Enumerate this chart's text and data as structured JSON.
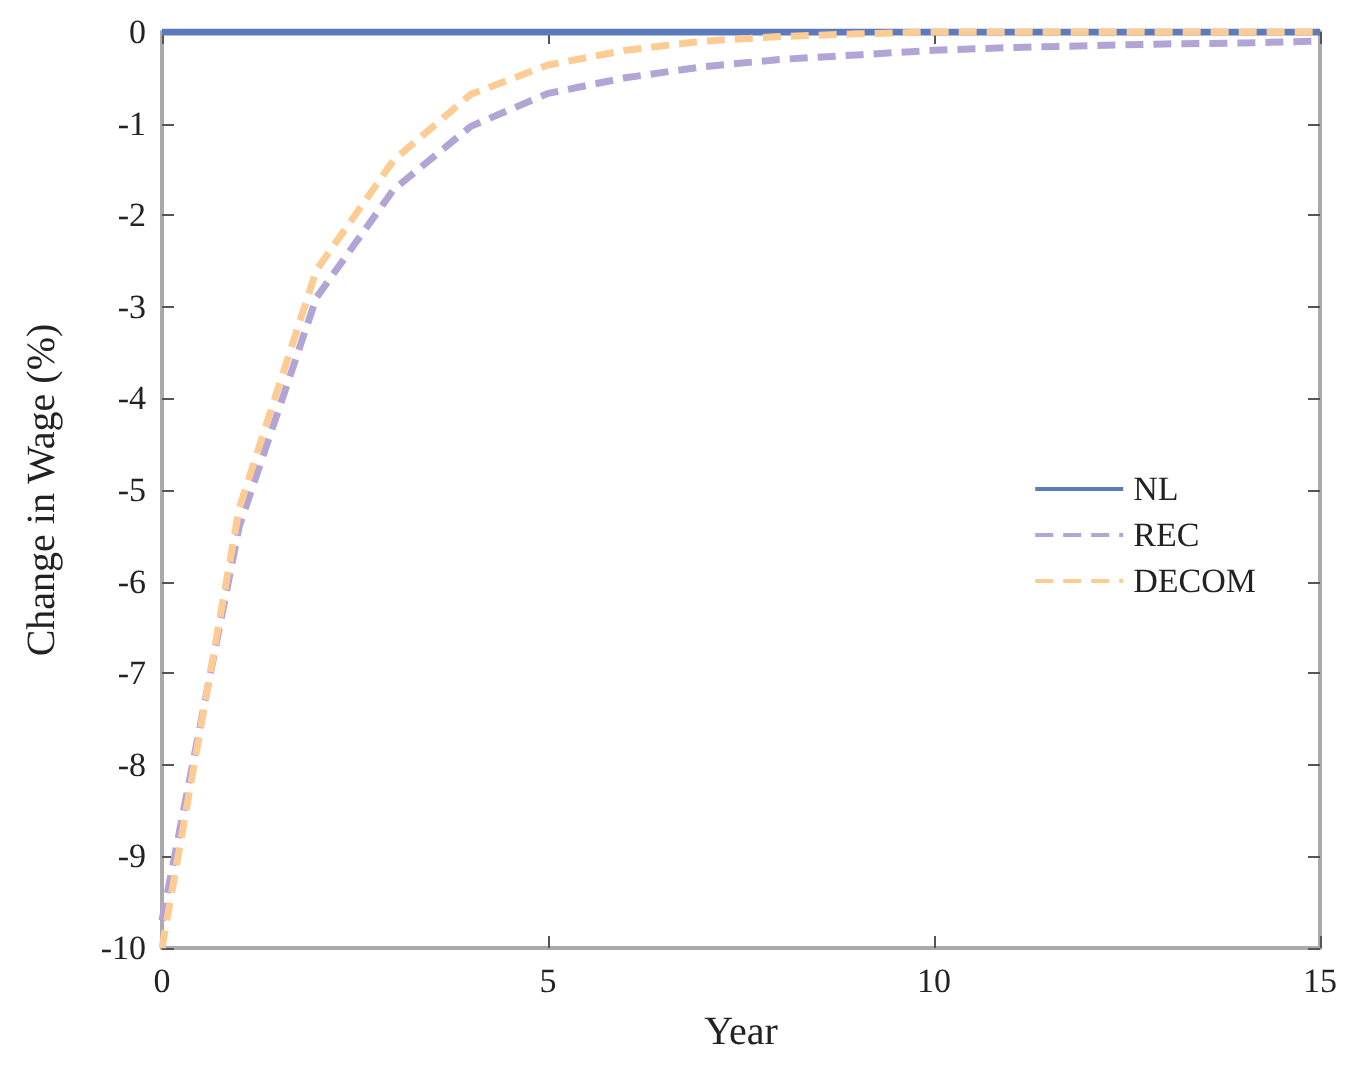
{
  "chart_data": {
    "type": "line",
    "xlabel": "Year",
    "ylabel": "Change in Wage (%)",
    "x": [
      0,
      1,
      2,
      3,
      4,
      5,
      6,
      7,
      8,
      9,
      10,
      11,
      12,
      13,
      14,
      15
    ],
    "series": [
      {
        "name": "NL",
        "color": "#5b7bbd",
        "line_style": "solid",
        "values": [
          0,
          0,
          0,
          0,
          0,
          0,
          0,
          0,
          0,
          0,
          0,
          0,
          0,
          0,
          0,
          0
        ]
      },
      {
        "name": "REC",
        "color": "#b3a4d6",
        "line_style": "dashed",
        "values": [
          -9.7,
          -5.4,
          -2.9,
          -1.72,
          -1.03,
          -0.67,
          -0.5,
          -0.38,
          -0.3,
          -0.25,
          -0.2,
          -0.17,
          -0.15,
          -0.13,
          -0.12,
          -0.1
        ]
      },
      {
        "name": "DECOM",
        "color": "#fdcb94",
        "line_style": "dashed",
        "values": [
          -10,
          -5.2,
          -2.6,
          -1.4,
          -0.68,
          -0.36,
          -0.2,
          -0.1,
          -0.05,
          -0.02,
          0,
          0,
          0,
          0,
          0,
          0
        ]
      }
    ],
    "xlim": [
      0,
      15
    ],
    "xticks": [
      0,
      5,
      10,
      15
    ],
    "ylim": [
      -10,
      0
    ],
    "yticks": [
      -10,
      -9,
      -8,
      -7,
      -6,
      -5,
      -4,
      -3,
      -2,
      -1,
      0
    ],
    "grid": false,
    "legend": "right",
    "marker": "none"
  }
}
